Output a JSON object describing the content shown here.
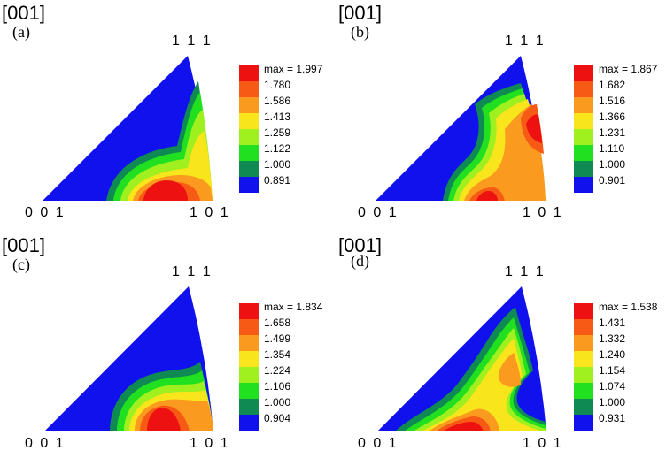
{
  "panels": [
    {
      "direction_label": "[001]",
      "panel_letter": "(a)",
      "corner_top": "1 1 1",
      "corner_left": "0 0 1",
      "corner_right": "1 0 1",
      "legend_max": "max = 1.997",
      "legend_values": [
        "1.780",
        "1.586",
        "1.413",
        "1.259",
        "1.122",
        "1.000",
        "0.891"
      ]
    },
    {
      "direction_label": "[001]",
      "panel_letter": "(b)",
      "corner_top": "1 1 1",
      "corner_left": "0 0 1",
      "corner_right": "1 0 1",
      "legend_max": "max = 1.867",
      "legend_values": [
        "1.682",
        "1.516",
        "1.366",
        "1.231",
        "1.110",
        "1.000",
        "0.901"
      ]
    },
    {
      "direction_label": "[001]",
      "panel_letter": "(c)",
      "corner_top": "1 1 1",
      "corner_left": "0 0 1",
      "corner_right": "1 0 1",
      "legend_max": "max = 1.834",
      "legend_values": [
        "1.658",
        "1.499",
        "1.354",
        "1.224",
        "1.106",
        "1.000",
        "0.904"
      ]
    },
    {
      "direction_label": "[001]",
      "panel_letter": "(d)",
      "corner_top": "1 1 1",
      "corner_left": "0 0 1",
      "corner_right": "1 0 1",
      "legend_max": "max = 1.538",
      "legend_values": [
        "1.431",
        "1.332",
        "1.240",
        "1.154",
        "1.074",
        "1.000",
        "0.931"
      ]
    }
  ],
  "colors": {
    "level_colors": [
      "#ee1111",
      "#f75a14",
      "#fa9a1e",
      "#f9e51b",
      "#9ff01e",
      "#20e020",
      "#0f8a52",
      "#1111ee"
    ]
  }
}
